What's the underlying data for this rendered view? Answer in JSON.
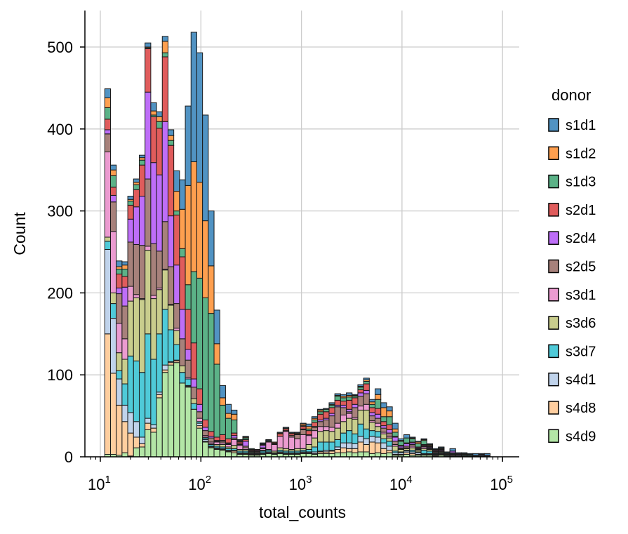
{
  "chart_data": {
    "type": "bar",
    "subtype": "stacked-histogram",
    "xlabel": "total_counts",
    "ylabel": "Count",
    "xscale": "log",
    "xlim_log10": [
      0.82,
      5.13
    ],
    "ylim": [
      0,
      545
    ],
    "grid": true,
    "y_ticks": [
      0,
      100,
      200,
      300,
      400,
      500
    ],
    "x_ticks": [
      {
        "base": "10",
        "exp": "1"
      },
      {
        "base": "10",
        "exp": "2"
      },
      {
        "base": "10",
        "exp": "3"
      },
      {
        "base": "10",
        "exp": "4"
      },
      {
        "base": "10",
        "exp": "5"
      }
    ],
    "legend": {
      "title": "donor",
      "placement": "right"
    },
    "donors": [
      "s1d1",
      "s1d2",
      "s1d3",
      "s2d1",
      "s2d4",
      "s2d5",
      "s3d1",
      "s3d6",
      "s3d7",
      "s4d1",
      "s4d8",
      "s4d9"
    ],
    "colors": {
      "s1d1": "#5193c3",
      "s1d2": "#fe9f4f",
      "s1d3": "#5bb287",
      "s2d1": "#e05c5c",
      "s2d4": "#be6ef8",
      "s2d5": "#a7817b",
      "s3d1": "#eb9bd0",
      "s3d6": "#c9cd8d",
      "s3d7": "#4fcad8",
      "s4d1": "#c0d3eb",
      "s4d8": "#ffce9f",
      "s4d9": "#b3e6a6"
    },
    "bin_start_log10": 1.044,
    "bin_width_log10": 0.0572,
    "stack_order_bottom_to_top": [
      "s4d9",
      "s4d8",
      "s4d1",
      "s3d7",
      "s3d6",
      "s3d1",
      "s2d5",
      "s2d4",
      "s2d1",
      "s1d3",
      "s1d2",
      "s1d1"
    ],
    "bin_counts": [
      [
        3,
        147,
        103,
        10,
        5,
        104,
        22,
        5,
        13,
        14,
        12,
        11
      ],
      [
        3,
        99,
        67,
        18,
        13,
        75,
        36,
        8,
        10,
        14,
        7,
        6
      ],
      [
        2,
        61,
        32,
        10,
        22,
        36,
        36,
        7,
        17,
        6,
        3,
        7
      ],
      [
        5,
        38,
        20,
        26,
        30,
        25,
        40,
        23,
        13,
        9,
        5,
        4
      ],
      [
        1,
        28,
        25,
        69,
        67,
        18,
        54,
        28,
        17,
        5,
        2,
        4
      ],
      [
        11,
        13,
        19,
        74,
        77,
        4,
        61,
        46,
        21,
        6,
        3,
        4
      ],
      [
        12,
        4,
        8,
        79,
        89,
        1,
        65,
        60,
        38,
        6,
        3,
        3
      ],
      [
        33,
        8,
        6,
        103,
        102,
        5,
        82,
        106,
        53,
        1,
        1,
        5
      ],
      [
        30,
        5,
        4,
        80,
        74,
        4,
        63,
        99,
        56,
        2,
        5,
        10
      ],
      [
        72,
        4,
        3,
        71,
        54,
        2,
        45,
        93,
        57,
        8,
        6,
        6
      ],
      [
        103,
        3,
        6,
        68,
        48,
        1,
        58,
        122,
        79,
        5,
        14,
        6
      ],
      [
        112,
        3,
        1,
        39,
        30,
        1,
        46,
        62,
        86,
        6,
        6,
        7
      ],
      [
        115,
        2,
        1,
        19,
        17,
        3,
        30,
        47,
        61,
        5,
        24,
        25
      ],
      [
        90,
        0,
        0,
        13,
        8,
        0,
        33,
        36,
        64,
        10,
        48,
        36
      ],
      [
        85,
        1,
        1,
        8,
        0,
        2,
        21,
        13,
        49,
        30,
        121,
        97
      ],
      [
        58,
        0,
        0,
        7,
        6,
        0,
        14,
        10,
        44,
        87,
        134,
        158
      ],
      [
        35,
        3,
        3,
        2,
        0,
        4,
        8,
        9,
        19,
        135,
        117,
        158
      ],
      [
        18,
        1,
        2,
        2,
        1,
        2,
        6,
        4,
        9,
        149,
        94,
        129
      ],
      [
        11,
        1,
        1,
        2,
        1,
        2,
        5,
        2,
        6,
        144,
        58,
        67
      ],
      [
        9,
        1,
        1,
        2,
        2,
        3,
        1,
        1,
        4,
        89,
        25,
        41
      ],
      [
        8,
        1,
        1,
        2,
        3,
        2,
        2,
        1,
        7,
        36,
        9,
        15
      ],
      [
        6,
        1,
        1,
        2,
        2,
        3,
        1,
        1,
        5,
        25,
        6,
        11
      ],
      [
        5,
        2,
        1,
        2,
        4,
        7,
        2,
        3,
        3,
        16,
        7,
        5
      ],
      [
        3,
        1,
        1,
        2,
        2,
        5,
        1,
        1,
        2,
        1,
        1,
        1
      ],
      [
        3,
        1,
        1,
        2,
        2,
        2,
        2,
        6,
        2,
        2,
        1,
        1
      ],
      [
        2,
        1,
        1,
        1,
        1,
        1,
        1,
        0,
        1,
        1,
        0,
        0
      ],
      [
        2,
        1,
        0,
        1,
        1,
        1,
        1,
        1,
        1,
        0,
        0,
        0
      ],
      [
        3,
        1,
        1,
        2,
        1,
        2,
        1,
        3,
        1,
        1,
        0,
        1
      ],
      [
        4,
        1,
        1,
        2,
        1,
        9,
        0,
        0,
        1,
        1,
        0,
        1
      ],
      [
        3,
        1,
        0,
        1,
        2,
        8,
        1,
        0,
        1,
        0,
        1,
        0
      ],
      [
        4,
        1,
        1,
        2,
        3,
        14,
        0,
        0,
        3,
        0,
        1,
        1
      ],
      [
        3,
        1,
        1,
        2,
        3,
        21,
        1,
        0,
        2,
        1,
        0,
        1
      ],
      [
        3,
        1,
        1,
        2,
        2,
        15,
        2,
        0,
        2,
        0,
        1,
        1
      ],
      [
        3,
        1,
        1,
        2,
        3,
        12,
        5,
        0,
        0,
        1,
        1,
        1
      ],
      [
        4,
        1,
        1,
        2,
        2,
        17,
        6,
        1,
        3,
        1,
        2,
        1
      ],
      [
        4,
        1,
        1,
        3,
        6,
        11,
        0,
        1,
        5,
        2,
        3,
        3
      ],
      [
        3,
        1,
        2,
        6,
        11,
        9,
        4,
        1,
        5,
        3,
        2,
        2
      ],
      [
        4,
        2,
        1,
        11,
        13,
        6,
        6,
        2,
        7,
        3,
        2,
        1
      ],
      [
        4,
        2,
        2,
        10,
        14,
        5,
        8,
        2,
        8,
        3,
        0,
        1
      ],
      [
        4,
        3,
        1,
        10,
        13,
        5,
        14,
        3,
        7,
        3,
        1,
        2
      ],
      [
        5,
        4,
        3,
        9,
        14,
        6,
        20,
        2,
        6,
        5,
        1,
        2
      ],
      [
        5,
        6,
        6,
        12,
        14,
        8,
        9,
        3,
        5,
        4,
        2,
        2
      ],
      [
        6,
        4,
        7,
        15,
        15,
        6,
        2,
        3,
        11,
        4,
        2,
        3
      ],
      [
        5,
        5,
        6,
        12,
        18,
        2,
        12,
        4,
        8,
        2,
        1,
        1
      ],
      [
        6,
        12,
        7,
        15,
        17,
        5,
        12,
        4,
        4,
        3,
        1,
        2
      ],
      [
        6,
        9,
        7,
        12,
        23,
        7,
        13,
        4,
        8,
        3,
        2,
        2
      ],
      [
        4,
        14,
        7,
        7,
        10,
        2,
        6,
        4,
        6,
        4,
        3,
        3
      ],
      [
        5,
        12,
        7,
        7,
        6,
        4,
        6,
        5,
        7,
        11,
        6,
        7
      ],
      [
        4,
        6,
        7,
        5,
        6,
        2,
        5,
        3,
        5,
        6,
        11,
        6
      ],
      [
        5,
        3,
        5,
        6,
        4,
        2,
        4,
        4,
        6,
        10,
        7,
        5
      ],
      [
        2,
        1,
        2,
        2,
        6,
        2,
        4,
        5,
        1,
        5,
        4,
        7
      ],
      [
        2,
        1,
        2,
        1,
        3,
        1,
        1,
        2,
        1,
        5,
        1,
        2
      ],
      [
        3,
        2,
        2,
        1,
        2,
        1,
        2,
        3,
        1,
        6,
        0,
        4
      ],
      [
        2,
        2,
        2,
        2,
        3,
        2,
        2,
        2,
        1,
        4,
        1,
        1
      ],
      [
        2,
        1,
        2,
        1,
        2,
        1,
        1,
        1,
        1,
        4,
        2,
        1
      ],
      [
        2,
        1,
        1,
        4,
        2,
        2,
        1,
        1,
        1,
        5,
        1,
        1
      ],
      [
        2,
        1,
        1,
        3,
        2,
        1,
        1,
        1,
        1,
        1,
        1,
        1
      ],
      [
        1,
        1,
        1,
        1,
        1,
        1,
        1,
        1,
        1,
        0,
        0,
        1
      ],
      [
        2,
        1,
        1,
        1,
        1,
        1,
        1,
        1,
        1,
        1,
        0,
        1
      ],
      [
        1,
        0,
        0,
        1,
        1,
        0,
        1,
        0,
        0,
        1,
        0,
        1
      ],
      [
        1,
        1,
        1,
        1,
        1,
        0,
        0,
        2,
        0,
        0,
        0,
        3
      ],
      [
        1,
        0,
        1,
        0,
        0,
        1,
        0,
        1,
        0,
        0,
        0,
        1
      ],
      [
        1,
        0,
        0,
        1,
        1,
        0,
        0,
        0,
        0,
        1,
        0,
        1
      ],
      [
        1,
        0,
        0,
        1,
        0,
        0,
        0,
        0,
        0,
        1,
        0,
        1
      ],
      [
        1,
        0,
        1,
        0,
        0,
        0,
        0,
        0,
        0,
        0,
        0,
        2
      ],
      [
        1,
        0,
        0,
        1,
        0,
        0,
        0,
        1,
        0,
        0,
        0,
        1
      ],
      [
        0,
        0,
        1,
        0,
        0,
        1,
        0,
        0,
        0,
        0,
        0,
        2
      ]
    ]
  }
}
